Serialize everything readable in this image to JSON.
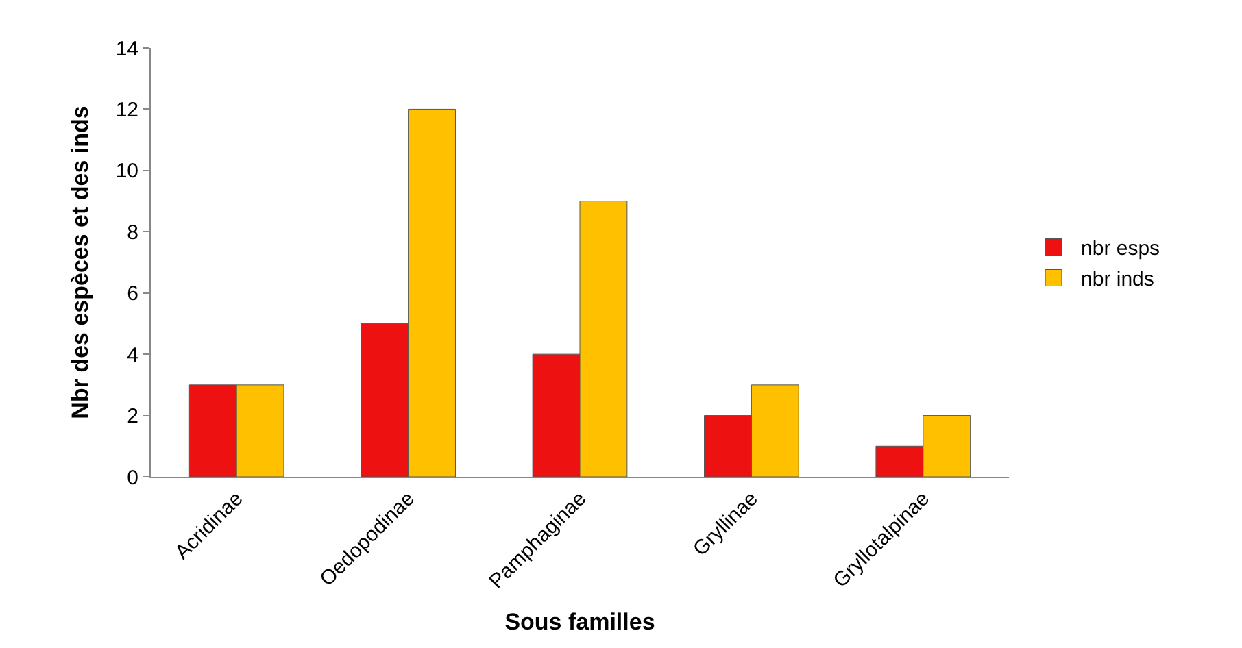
{
  "chart_data": {
    "type": "bar",
    "xlabel": "Sous familles",
    "ylabel": "Nbr des espèces et des inds",
    "categories": [
      "Acridinae",
      "Oedopodinae",
      "Pamphaginae",
      "Gryllinae",
      "Gryllotalpinae"
    ],
    "series": [
      {
        "name": "nbr esps",
        "color": "#ee1111",
        "values": [
          3,
          5,
          4,
          2,
          1
        ]
      },
      {
        "name": "nbr inds",
        "color": "#ffc000",
        "values": [
          3,
          12,
          9,
          3,
          2
        ]
      }
    ],
    "ylim": [
      0,
      14
    ],
    "yticks": [
      0,
      2,
      4,
      6,
      8,
      10,
      12,
      14
    ],
    "legend": "right"
  }
}
